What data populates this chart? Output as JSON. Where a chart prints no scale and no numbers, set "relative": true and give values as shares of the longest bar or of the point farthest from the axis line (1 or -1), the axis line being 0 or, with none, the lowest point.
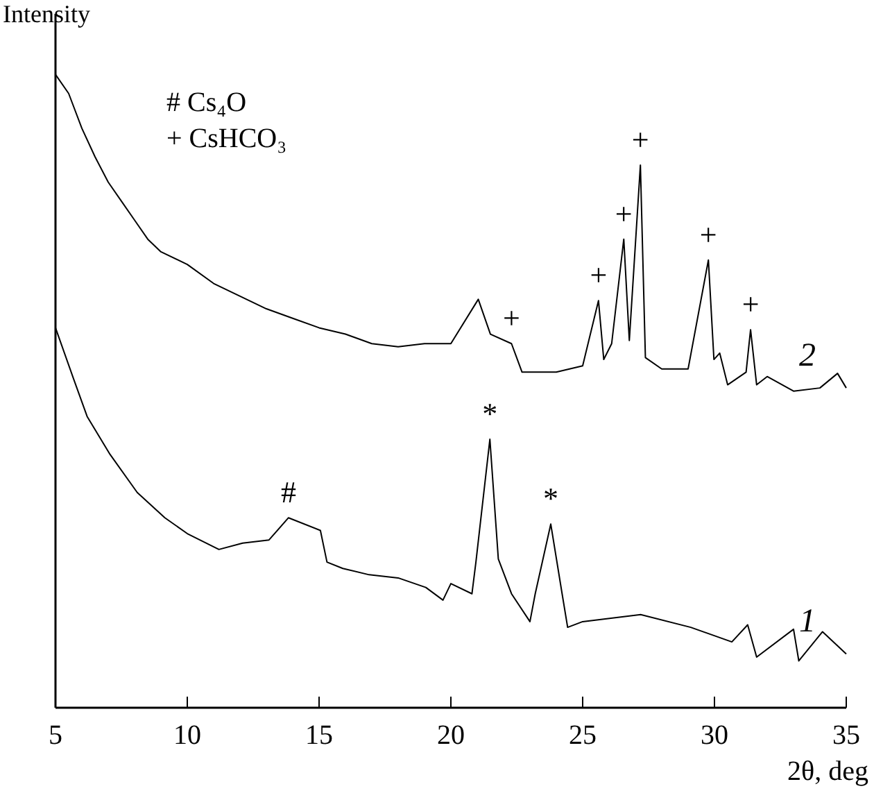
{
  "chart_data": {
    "type": "line",
    "relative": true,
    "xlabel": "2θ, deg",
    "ylabel": "Intensity",
    "xlim": [
      5,
      35
    ],
    "xticks": [
      5,
      10,
      15,
      20,
      25,
      30,
      35
    ],
    "legend": false,
    "marker": "none",
    "line_style": "solid",
    "series": [
      {
        "name": "1",
        "color": "#000000",
        "x": [
          5,
          5.68,
          6.2,
          7.07,
          8.1,
          9.15,
          10,
          11.2,
          12.1,
          13.1,
          13.84,
          15.05,
          15.3,
          15.9,
          16.9,
          18,
          19.05,
          19.7,
          20,
          20.8,
          20.95,
          21.48,
          21.8,
          22.3,
          23,
          23.2,
          23.79,
          24.22,
          24.43,
          25,
          27.2,
          29.1,
          30.66,
          31.26,
          31.6,
          33,
          33.2,
          34.1,
          35
        ],
        "values": [
          0.6,
          0.52,
          0.46,
          0.4,
          0.34,
          0.3,
          0.275,
          0.25,
          0.26,
          0.265,
          0.3,
          0.28,
          0.23,
          0.22,
          0.21,
          0.205,
          0.19,
          0.17,
          0.196,
          0.18,
          0.23,
          0.424,
          0.235,
          0.18,
          0.136,
          0.18,
          0.29,
          0.18,
          0.127,
          0.136,
          0.147,
          0.127,
          0.104,
          0.131,
          0.08,
          0.124,
          0.074,
          0.12,
          0.085
        ]
      },
      {
        "name": "2",
        "color": "#000000",
        "x": [
          5,
          5.5,
          6,
          6.5,
          7,
          7.5,
          8,
          8.5,
          9,
          10,
          11,
          12,
          13,
          14,
          15,
          16,
          17,
          18,
          19,
          20,
          21.04,
          21.5,
          22.3,
          22.7,
          24,
          25,
          25.6,
          25.8,
          26.1,
          26.56,
          26.77,
          27.19,
          27.38,
          28,
          29,
          29.77,
          29.98,
          30.2,
          30.5,
          31.2,
          31.37,
          31.6,
          32,
          33,
          34,
          34.67,
          35
        ],
        "values": [
          1,
          0.97,
          0.915,
          0.87,
          0.83,
          0.8,
          0.77,
          0.74,
          0.72,
          0.7,
          0.67,
          0.65,
          0.63,
          0.615,
          0.6,
          0.59,
          0.575,
          0.57,
          0.575,
          0.575,
          0.645,
          0.59,
          0.575,
          0.53,
          0.53,
          0.54,
          0.643,
          0.55,
          0.575,
          0.74,
          0.58,
          0.857,
          0.553,
          0.535,
          0.535,
          0.707,
          0.55,
          0.56,
          0.51,
          0.53,
          0.597,
          0.51,
          0.523,
          0.5,
          0.505,
          0.528,
          0.505
        ]
      }
    ],
    "annotations": [
      "# Cs₄O",
      "+ CsHCO₃",
      {
        "text": "#",
        "x": 13.84,
        "y": 0.3
      },
      {
        "text": "*",
        "x": 21.48,
        "y": 0.424
      },
      {
        "text": "*",
        "x": 23.79,
        "y": 0.29
      },
      {
        "text": "+",
        "x": 22.3,
        "y": 0.575
      },
      {
        "text": "+",
        "x": 25.6,
        "y": 0.643
      },
      {
        "text": "+",
        "x": 26.56,
        "y": 0.74
      },
      {
        "text": "+",
        "x": 27.19,
        "y": 0.857
      },
      {
        "text": "+",
        "x": 29.77,
        "y": 0.707
      },
      {
        "text": "+",
        "x": 31.37,
        "y": 0.597
      }
    ]
  }
}
